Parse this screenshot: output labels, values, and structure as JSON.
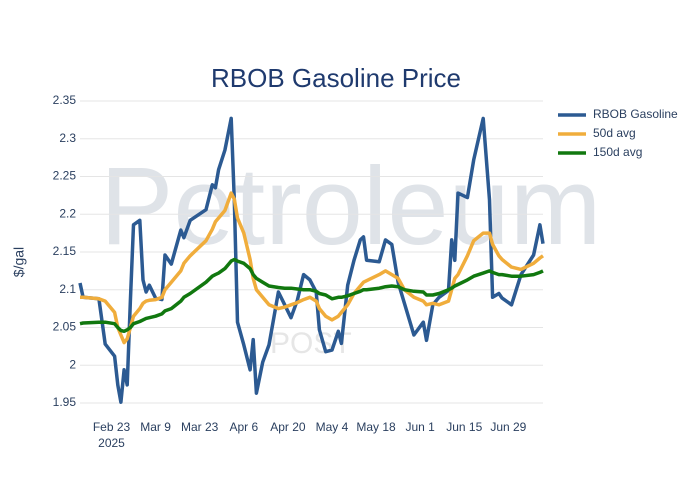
{
  "chart_data": {
    "type": "line",
    "title": "RBOB Gasoline Price",
    "y_label": "$/gal",
    "watermark": "Petroleum",
    "watermark_sub": "POST",
    "x": [
      "2025-02-13",
      "2025-02-14",
      "2025-02-19",
      "2025-02-21",
      "2025-02-24",
      "2025-02-25",
      "2025-02-26",
      "2025-02-27",
      "2025-02-28",
      "2025-03-01",
      "2025-03-02",
      "2025-03-04",
      "2025-03-05",
      "2025-03-06",
      "2025-03-07",
      "2025-03-09",
      "2025-03-11",
      "2025-03-12",
      "2025-03-14",
      "2025-03-17",
      "2025-03-18",
      "2025-03-20",
      "2025-03-25",
      "2025-03-27",
      "2025-03-28",
      "2025-03-29",
      "2025-03-31",
      "2025-04-02",
      "2025-04-03",
      "2025-04-04",
      "2025-04-06",
      "2025-04-08",
      "2025-04-09",
      "2025-04-10",
      "2025-04-12",
      "2025-04-14",
      "2025-04-17",
      "2025-04-19",
      "2025-04-21",
      "2025-04-23",
      "2025-04-25",
      "2025-04-27",
      "2025-04-29",
      "2025-04-30",
      "2025-05-02",
      "2025-05-04",
      "2025-05-06",
      "2025-05-07",
      "2025-05-09",
      "2025-05-11",
      "2025-05-13",
      "2025-05-14",
      "2025-05-15",
      "2025-05-19",
      "2025-05-21",
      "2025-05-23",
      "2025-05-25",
      "2025-05-27",
      "2025-05-30",
      "2025-06-02",
      "2025-06-03",
      "2025-06-05",
      "2025-06-07",
      "2025-06-10",
      "2025-06-11",
      "2025-06-12",
      "2025-06-13",
      "2025-06-16",
      "2025-06-18",
      "2025-06-21",
      "2025-06-23",
      "2025-06-24",
      "2025-06-26",
      "2025-06-27",
      "2025-06-30",
      "2025-07-03",
      "2025-07-07",
      "2025-07-09",
      "2025-07-10"
    ],
    "series": [
      {
        "name": "RBOB Gasoline",
        "color": "#2c5a92",
        "width": 3.5,
        "values": [
          2.109,
          2.09,
          2.088,
          2.028,
          2.012,
          1.974,
          1.951,
          1.994,
          1.974,
          2.086,
          2.186,
          2.192,
          2.113,
          2.097,
          2.106,
          2.089,
          2.087,
          2.146,
          2.134,
          2.179,
          2.169,
          2.192,
          2.206,
          2.239,
          2.235,
          2.259,
          2.285,
          2.327,
          2.219,
          2.057,
          2.027,
          1.994,
          2.034,
          1.963,
          2.004,
          2.027,
          2.097,
          2.08,
          2.063,
          2.086,
          2.12,
          2.113,
          2.097,
          2.047,
          2.018,
          2.02,
          2.045,
          2.029,
          2.106,
          2.139,
          2.166,
          2.17,
          2.139,
          2.137,
          2.166,
          2.16,
          2.11,
          2.082,
          2.04,
          2.057,
          2.033,
          2.08,
          2.09,
          2.099,
          2.166,
          2.139,
          2.228,
          2.222,
          2.272,
          2.327,
          2.219,
          2.09,
          2.095,
          2.089,
          2.08,
          2.12,
          2.146,
          2.186,
          2.161
        ]
      },
      {
        "name": "50d avg",
        "color": "#f0ad3c",
        "width": 3.5,
        "values": [
          2.09,
          2.09,
          2.088,
          2.085,
          2.07,
          2.05,
          2.04,
          2.03,
          2.035,
          2.05,
          2.065,
          2.075,
          2.082,
          2.085,
          2.086,
          2.087,
          2.09,
          2.1,
          2.11,
          2.125,
          2.135,
          2.145,
          2.165,
          2.18,
          2.19,
          2.195,
          2.205,
          2.228,
          2.22,
          2.195,
          2.175,
          2.14,
          2.115,
          2.1,
          2.09,
          2.08,
          2.075,
          2.077,
          2.08,
          2.083,
          2.087,
          2.09,
          2.085,
          2.075,
          2.065,
          2.06,
          2.065,
          2.07,
          2.08,
          2.095,
          2.105,
          2.11,
          2.112,
          2.12,
          2.125,
          2.12,
          2.115,
          2.1,
          2.09,
          2.085,
          2.08,
          2.082,
          2.08,
          2.085,
          2.1,
          2.115,
          2.12,
          2.145,
          2.165,
          2.175,
          2.175,
          2.16,
          2.145,
          2.14,
          2.13,
          2.127,
          2.135,
          2.142,
          2.145
        ]
      },
      {
        "name": "150d avg",
        "color": "#11780f",
        "width": 3.5,
        "values": [
          2.055,
          2.056,
          2.057,
          2.057,
          2.055,
          2.05,
          2.046,
          2.045,
          2.047,
          2.05,
          2.055,
          2.058,
          2.06,
          2.062,
          2.063,
          2.065,
          2.068,
          2.072,
          2.075,
          2.085,
          2.09,
          2.095,
          2.11,
          2.118,
          2.12,
          2.122,
          2.128,
          2.138,
          2.14,
          2.138,
          2.135,
          2.128,
          2.12,
          2.115,
          2.11,
          2.105,
          2.103,
          2.102,
          2.102,
          2.101,
          2.1,
          2.1,
          2.098,
          2.095,
          2.093,
          2.088,
          2.09,
          2.09,
          2.092,
          2.095,
          2.098,
          2.1,
          2.1,
          2.102,
          2.104,
          2.105,
          2.104,
          2.1,
          2.098,
          2.097,
          2.093,
          2.093,
          2.095,
          2.1,
          2.102,
          2.105,
          2.107,
          2.113,
          2.118,
          2.122,
          2.125,
          2.123,
          2.12,
          2.12,
          2.118,
          2.118,
          2.12,
          2.123,
          2.125
        ]
      }
    ],
    "xlim": [
      "2025-02-13",
      "2025-07-10"
    ],
    "xticks": [
      {
        "value": "2025-02-23",
        "label": "Feb 23\n2025"
      },
      {
        "value": "2025-03-09",
        "label": "Mar 9"
      },
      {
        "value": "2025-03-23",
        "label": "Mar 23"
      },
      {
        "value": "2025-04-06",
        "label": "Apr 6"
      },
      {
        "value": "2025-04-20",
        "label": "Apr 20"
      },
      {
        "value": "2025-05-04",
        "label": "May 4"
      },
      {
        "value": "2025-05-18",
        "label": "May 18"
      },
      {
        "value": "2025-06-01",
        "label": "Jun 1"
      },
      {
        "value": "2025-06-15",
        "label": "Jun 15"
      },
      {
        "value": "2025-06-29",
        "label": "Jun 29"
      }
    ],
    "ylim": [
      1.95,
      2.35
    ],
    "yticks": [
      1.95,
      2,
      2.05,
      2.1,
      2.15,
      2.2,
      2.25,
      2.3,
      2.35
    ],
    "grid": true,
    "legend": "right"
  }
}
